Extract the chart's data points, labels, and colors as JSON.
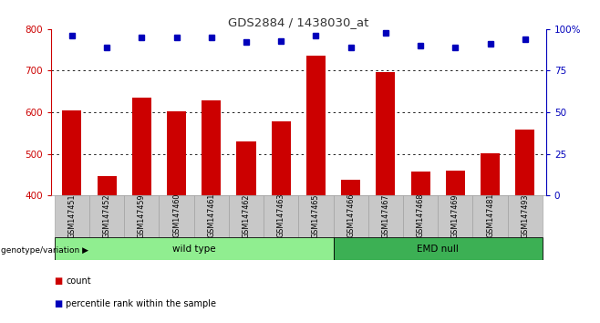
{
  "title": "GDS2884 / 1438030_at",
  "samples": [
    "GSM147451",
    "GSM147452",
    "GSM147459",
    "GSM147460",
    "GSM147461",
    "GSM147462",
    "GSM147463",
    "GSM147465",
    "GSM147466",
    "GSM147467",
    "GSM147468",
    "GSM147469",
    "GSM147481",
    "GSM147493"
  ],
  "count_values": [
    605,
    447,
    635,
    603,
    628,
    530,
    578,
    735,
    437,
    697,
    458,
    460,
    502,
    558
  ],
  "percentile_values": [
    96,
    89,
    95,
    95,
    95,
    92,
    93,
    96,
    89,
    98,
    90,
    89,
    91,
    94
  ],
  "ymin": 400,
  "ymax": 800,
  "yticks": [
    400,
    500,
    600,
    700,
    800
  ],
  "right_yticks": [
    0,
    25,
    50,
    75,
    100
  ],
  "wild_type_count": 8,
  "emd_null_count": 6,
  "groups": [
    {
      "label": "wild type",
      "start": 0,
      "end": 8,
      "color": "#90EE90"
    },
    {
      "label": "EMD null",
      "start": 8,
      "end": 14,
      "color": "#3CB054"
    }
  ],
  "bar_color": "#CC0000",
  "dot_color": "#0000BB",
  "left_axis_color": "#CC0000",
  "right_axis_color": "#0000BB",
  "background_color": "#FFFFFF",
  "tick_label_bg": "#C8C8C8",
  "grid_color": "#000000",
  "group_label_arrow": "genotype/variation",
  "legend_count": "count",
  "legend_percentile": "percentile rank within the sample",
  "bar_width": 0.55
}
